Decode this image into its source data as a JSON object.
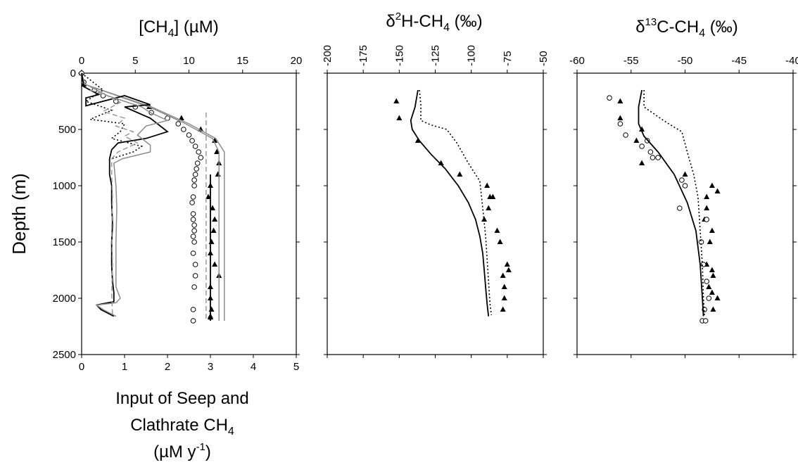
{
  "figure": {
    "ylabel": "Depth (m)",
    "bottom_label_lines": [
      "Input of Seep and",
      "Clathrate CH",
      "(µM y"
    ],
    "bottom_label_sub": "4",
    "bottom_label_sup": "-1",
    "bottom_label_end": ")"
  },
  "chart_data": [
    {
      "type": "line",
      "title_main": "[CH",
      "title_sub": "4",
      "title_end": "] (µM)",
      "xlabel_top": "[CH4] (µM)",
      "xlabel_bottom": "Input of Seep and Clathrate CH4 (µM y-1)",
      "ylabel": "Depth (m)",
      "xlim_top": [
        0,
        20
      ],
      "xticks_top": [
        0,
        5,
        10,
        15,
        20
      ],
      "xlim_bottom": [
        0,
        5
      ],
      "xticks_bottom": [
        0,
        1,
        2,
        3,
        4,
        5
      ],
      "ylim": [
        0,
        2500
      ],
      "yticks": [
        0,
        500,
        1000,
        1500,
        2000,
        2500
      ],
      "yreversed": true,
      "series": [
        {
          "style": "triangles",
          "axis": "top",
          "x": [
            0,
            0.2,
            6.3,
            9.3,
            11.1,
            12.4,
            12.6,
            12.8,
            12.7,
            12.0,
            11.8,
            12.2,
            12.4,
            12.3,
            12.1,
            12.0,
            12.4,
            12.8,
            12.0,
            12.0,
            12.1,
            12.0,
            12.0
          ],
          "y": [
            0,
            100,
            300,
            400,
            500,
            600,
            700,
            800,
            900,
            1000,
            1100,
            1200,
            1300,
            1400,
            1500,
            1600,
            1700,
            1800,
            1900,
            2000,
            2100,
            2160,
            2170
          ]
        },
        {
          "style": "circles",
          "axis": "top",
          "x": [
            0,
            0.2,
            1.2,
            2.0,
            3.2,
            5.0,
            6.5,
            8.0,
            9.0,
            9.5,
            10.0,
            10.3,
            10.6,
            10.9,
            11.1,
            10.8,
            10.7,
            10.6,
            10.5,
            10.5,
            10.4,
            10.3,
            10.4,
            10.4,
            10.5,
            10.5,
            10.4,
            10.5,
            10.4,
            10.6,
            10.6,
            10.5,
            10.4,
            10.4
          ],
          "y": [
            0,
            80,
            150,
            200,
            250,
            300,
            350,
            400,
            450,
            500,
            550,
            600,
            650,
            700,
            750,
            800,
            850,
            900,
            950,
            1000,
            1100,
            1150,
            1250,
            1300,
            1350,
            1400,
            1450,
            1500,
            1600,
            1700,
            1800,
            1900,
            2100,
            2200
          ]
        },
        {
          "style": "solid-gray",
          "axis": "top",
          "x": [
            0,
            0.3,
            6.5,
            10.0,
            12.5,
            13.3,
            13.3,
            13.3
          ],
          "y": [
            0,
            100,
            300,
            450,
            580,
            700,
            1500,
            2200
          ]
        },
        {
          "style": "solid-gray",
          "axis": "top",
          "x": [
            0,
            0.3,
            6.3,
            9.7,
            12.2,
            12.8,
            12.8,
            12.8
          ],
          "y": [
            0,
            100,
            300,
            450,
            580,
            700,
            1500,
            2200
          ]
        },
        {
          "style": "dashed-gray",
          "axis": "top",
          "x": [
            11.6,
            11.6
          ],
          "y": [
            350,
            2200
          ]
        },
        {
          "style": "solid-black",
          "axis": "top",
          "x": [
            12.0,
            12.0
          ],
          "y": [
            900,
            2200
          ]
        },
        {
          "style": "solid-black",
          "axis": "bottom",
          "x": [
            0,
            0.05,
            0.4,
            0.1,
            0.1,
            1.0,
            1.6,
            1.0,
            1.6,
            2.0,
            1.5,
            0.85,
            0.7,
            0.65,
            0.65,
            0.7,
            0.7,
            0.72,
            0.7,
            0.7,
            0.72,
            0.75,
            0.75,
            0.75,
            0.35,
            0.45,
            0.75
          ],
          "y": [
            0,
            120,
            190,
            220,
            290,
            200,
            280,
            300,
            400,
            520,
            580,
            620,
            680,
            760,
            900,
            1000,
            1150,
            1350,
            1500,
            1700,
            1850,
            1950,
            2000,
            2030,
            2060,
            2100,
            2160
          ]
        },
        {
          "style": "dotted-black",
          "axis": "bottom",
          "x": [
            0,
            0.5,
            0.1,
            0.7,
            0.2,
            1.0,
            0.9,
            0.7,
            1.4,
            1.2,
            0.7
          ],
          "y": [
            0,
            150,
            250,
            330,
            410,
            450,
            520,
            580,
            650,
            700,
            760
          ]
        },
        {
          "style": "dashed-gray",
          "axis": "bottom",
          "x": [
            0.2,
            0.6,
            0.9,
            0.5,
            1.0,
            0.8,
            1.2,
            1.0,
            1.3,
            0.85,
            0.7,
            0.7,
            0.72,
            0.7,
            0.72,
            0.7,
            0.72
          ],
          "y": [
            150,
            200,
            260,
            340,
            400,
            470,
            520,
            560,
            620,
            700,
            760,
            900,
            1100,
            1400,
            1700,
            1950,
            2150
          ]
        },
        {
          "style": "solid-gray",
          "axis": "bottom",
          "x": [
            0.2,
            0.6,
            1.4,
            1.6,
            2.0,
            1.5,
            1.3,
            1.6,
            1.6,
            0.95,
            0.75,
            0.8,
            0.82,
            0.8,
            0.8,
            0.8,
            0.9,
            0.8,
            0.35,
            0.5,
            0.8
          ],
          "y": [
            120,
            200,
            300,
            350,
            420,
            470,
            550,
            640,
            700,
            760,
            800,
            1000,
            1200,
            1500,
            1700,
            1900,
            2000,
            2040,
            2060,
            2100,
            2160
          ]
        }
      ]
    },
    {
      "type": "line",
      "title_main": "δ",
      "title_sup": "2",
      "title_mid": "H-CH",
      "title_sub": "4",
      "title_end": " (‰)",
      "xlim": [
        -200,
        -50
      ],
      "xticks": [
        -200,
        -175,
        -150,
        -125,
        -100,
        -75,
        -50
      ],
      "ylim": [
        0,
        2500
      ],
      "yreversed": true,
      "series": [
        {
          "style": "triangles",
          "x": [
            -152,
            -150,
            -137,
            -121,
            -108,
            -89,
            -87,
            -88,
            -85,
            -91,
            -82,
            -80,
            -75,
            -74,
            -78,
            -77,
            -77,
            -78
          ],
          "y": [
            250,
            400,
            600,
            800,
            900,
            1000,
            1100,
            1200,
            1100,
            1300,
            1400,
            1500,
            1700,
            1750,
            1800,
            1900,
            2000,
            2100
          ]
        },
        {
          "style": "dotted-black",
          "x": [
            -136,
            -135,
            -135,
            -128,
            -117,
            -110,
            -102,
            -94,
            -92,
            -90,
            -89,
            -88,
            -87,
            -86
          ],
          "y": [
            150,
            280,
            420,
            460,
            500,
            620,
            800,
            960,
            1200,
            1450,
            1650,
            1850,
            2050,
            2150
          ]
        },
        {
          "style": "solid-black",
          "x": [
            -137,
            -139,
            -142,
            -141,
            -136,
            -128,
            -118,
            -109,
            -102,
            -97,
            -94,
            -92,
            -91,
            -90,
            -89,
            -88
          ],
          "y": [
            150,
            300,
            420,
            500,
            600,
            720,
            850,
            1000,
            1150,
            1300,
            1450,
            1600,
            1750,
            1900,
            2050,
            2160
          ]
        }
      ]
    },
    {
      "type": "line",
      "title_main": "δ",
      "title_sup": "13",
      "title_mid": "C-CH",
      "title_sub": "4",
      "title_end": " (‰)",
      "xlim": [
        -60,
        -40
      ],
      "xticks": [
        -60,
        -55,
        -50,
        -45,
        -40
      ],
      "ylim": [
        0,
        2500
      ],
      "yreversed": true,
      "series": [
        {
          "style": "triangles",
          "x": [
            -56,
            -56,
            -54,
            -54.5,
            -54,
            -50,
            -47.5,
            -47,
            -48,
            -48,
            -48.2,
            -47.5,
            -47.7,
            -48,
            -47.5,
            -47.4,
            -47.8,
            -47.5,
            -47,
            -47.4
          ],
          "y": [
            250,
            400,
            500,
            600,
            800,
            900,
            1000,
            1050,
            1100,
            1200,
            1300,
            1400,
            1500,
            1700,
            1750,
            1800,
            1900,
            1950,
            2000,
            2100
          ]
        },
        {
          "style": "circles",
          "x": [
            -57,
            -56,
            -55.5,
            -54,
            -53.5,
            -53.2,
            -53,
            -52.5,
            -50.3,
            -50,
            -50.5,
            -48,
            -48.5,
            -48.3,
            -48,
            -47.8,
            -48.2,
            -48.4,
            -48.1
          ],
          "y": [
            220,
            450,
            550,
            650,
            600,
            700,
            750,
            750,
            950,
            1000,
            1200,
            1300,
            1500,
            1700,
            1850,
            2000,
            2100,
            2200,
            2200
          ]
        },
        {
          "style": "dotted-black",
          "x": [
            -53.8,
            -53.8,
            -52.0,
            -51.0,
            -50.3,
            -49.8,
            -49.2,
            -48.8,
            -48.6,
            -48.4,
            -48.3,
            -48.2
          ],
          "y": [
            150,
            300,
            420,
            480,
            520,
            700,
            900,
            1100,
            1400,
            1700,
            2000,
            2150
          ]
        },
        {
          "style": "solid-black",
          "x": [
            -54.0,
            -54.3,
            -54.3,
            -53.8,
            -52.5,
            -51.0,
            -49.8,
            -49.0,
            -48.6,
            -48.4,
            -48.3
          ],
          "y": [
            150,
            300,
            450,
            560,
            700,
            900,
            1150,
            1400,
            1700,
            2000,
            2160
          ]
        }
      ]
    }
  ]
}
